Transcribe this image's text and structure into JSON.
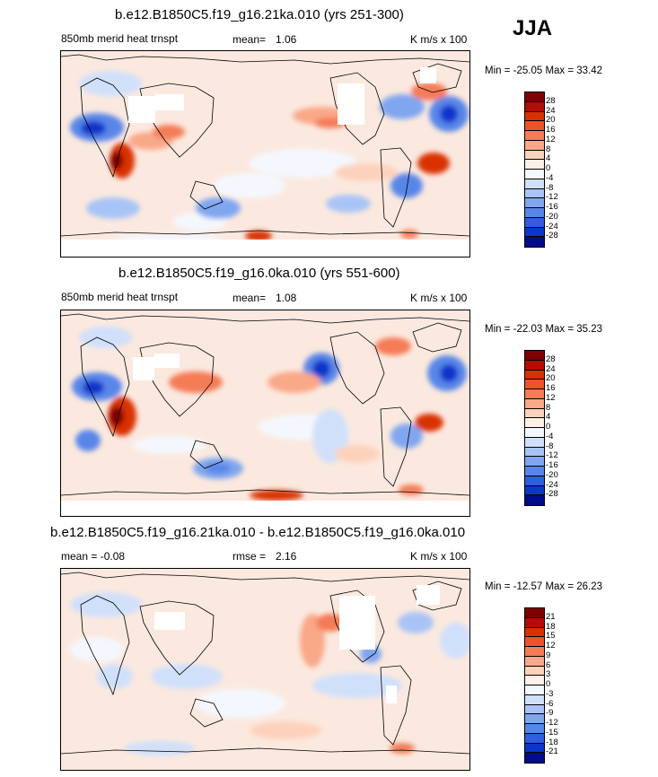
{
  "season": "JJA",
  "panels": [
    {
      "id": "top",
      "title": "b.e12.B1850C5.f19_g16.21ka.010 (yrs 251-300)",
      "left_label": "850mb merid heat trnspt",
      "stat_label": "mean=",
      "stat_value": "1.06",
      "units": "K m/s x 100",
      "minmax": "Min = -25.05 Max =  33.42"
    },
    {
      "id": "mid",
      "title": "b.e12.B1850C5.f19_g16.0ka.010 (yrs 551-600)",
      "left_label": "850mb merid heat trnspt",
      "stat_label": "mean=",
      "stat_value": "1.08",
      "units": "K m/s x 100",
      "minmax": "Min = -22.03 Max =  35.23"
    },
    {
      "id": "diff",
      "title": "b.e12.B1850C5.f19_g16.21ka.010 - b.e12.B1850C5.f19_g16.0ka.010",
      "left_label": "mean =  -0.08",
      "stat_label": "rmse =",
      "stat_value": "2.16",
      "units": "K m/s x 100",
      "minmax": "Min = -12.57 Max =  26.23"
    }
  ],
  "colorbars": [
    {
      "labels": [
        "28",
        "24",
        "20",
        "16",
        "12",
        "8",
        "4",
        "0",
        "-4",
        "-8",
        "-12",
        "-16",
        "-20",
        "-24",
        "-28"
      ],
      "colors": [
        "#7f0000",
        "#b30c00",
        "#d93000",
        "#ee5228",
        "#f47c56",
        "#f9a888",
        "#fdd2bc",
        "#fcf0e8",
        "#f4f8fe",
        "#d0e0fb",
        "#a8c4f6",
        "#80a6ef",
        "#5886e8",
        "#2d5fde",
        "#0a36cc",
        "#000c8a"
      ]
    },
    {
      "labels": [
        "28",
        "24",
        "20",
        "16",
        "12",
        "8",
        "4",
        "0",
        "-4",
        "-8",
        "-12",
        "-16",
        "-20",
        "-24",
        "-28"
      ],
      "colors": [
        "#7f0000",
        "#b30c00",
        "#d93000",
        "#ee5228",
        "#f47c56",
        "#f9a888",
        "#fdd2bc",
        "#fcf0e8",
        "#f4f8fe",
        "#d0e0fb",
        "#a8c4f6",
        "#80a6ef",
        "#5886e8",
        "#2d5fde",
        "#0a36cc",
        "#000c8a"
      ]
    },
    {
      "labels": [
        "21",
        "18",
        "15",
        "12",
        "9",
        "6",
        "3",
        "0",
        "-3",
        "-6",
        "-9",
        "-12",
        "-15",
        "-18",
        "-21"
      ],
      "colors": [
        "#7f0000",
        "#b30c00",
        "#d93000",
        "#ee5228",
        "#f47c56",
        "#f9a888",
        "#fdd2bc",
        "#fcf0e8",
        "#f4f8fe",
        "#d0e0fb",
        "#a8c4f6",
        "#80a6ef",
        "#5886e8",
        "#2d5fde",
        "#0a36cc",
        "#000c8a"
      ]
    }
  ],
  "chart_data": {
    "type": "heatmap",
    "variable": "850mb merid heat trnspt",
    "units": "K m/s x 100",
    "season": "JJA",
    "maps": [
      {
        "title": "b.e12.B1850C5.f19_g16.21ka.010 (yrs 251-300)",
        "mean": 1.06,
        "min": -25.05,
        "max": 33.42,
        "levels": [
          -28,
          -24,
          -20,
          -16,
          -12,
          -8,
          -4,
          0,
          4,
          8,
          12,
          16,
          20,
          24,
          28
        ]
      },
      {
        "title": "b.e12.B1850C5.f19_g16.0ka.010 (yrs 551-600)",
        "mean": 1.08,
        "min": -22.03,
        "max": 35.23,
        "levels": [
          -28,
          -24,
          -20,
          -16,
          -12,
          -8,
          -4,
          0,
          4,
          8,
          12,
          16,
          20,
          24,
          28
        ]
      },
      {
        "title": "b.e12.B1850C5.f19_g16.21ka.010 - b.e12.B1850C5.f19_g16.0ka.010",
        "mean": -0.08,
        "rmse": 2.16,
        "min": -12.57,
        "max": 26.23,
        "levels": [
          -21,
          -18,
          -15,
          -12,
          -9,
          -6,
          -3,
          0,
          3,
          6,
          9,
          12,
          15,
          18,
          21
        ]
      }
    ]
  }
}
